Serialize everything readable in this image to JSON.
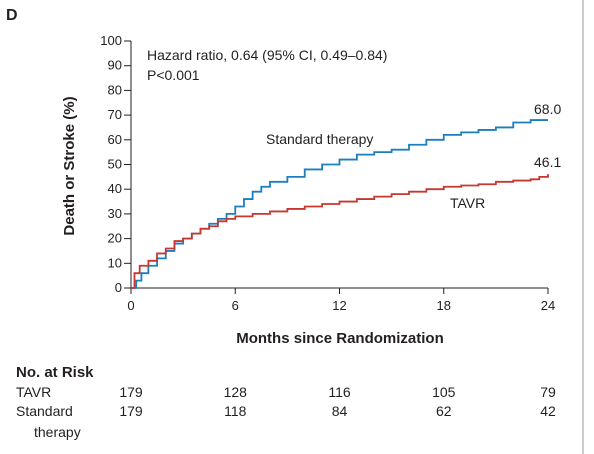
{
  "panel_letter": "D",
  "chart_data": {
    "type": "line",
    "xlabel": "Months since Randomization",
    "ylabel": "Death or Stroke (%)",
    "xlim": [
      0,
      24
    ],
    "ylim": [
      0,
      100
    ],
    "x_ticks": [
      0,
      6,
      12,
      18,
      24
    ],
    "y_ticks": [
      0,
      10,
      20,
      30,
      40,
      50,
      60,
      70,
      80,
      90,
      100
    ],
    "grid": false,
    "annotations": {
      "hazard_line1": "Hazard ratio, 0.64 (95% CI, 0.49–0.84)",
      "hazard_line2": "P<0.001"
    },
    "series": [
      {
        "name": "Standard therapy",
        "color": "#1a7fc1",
        "end_label": "68.0",
        "x": [
          0,
          0.3,
          0.6,
          1.0,
          1.5,
          2.0,
          2.5,
          3.0,
          3.5,
          4.0,
          4.5,
          5.0,
          5.5,
          6.0,
          6.5,
          7.0,
          7.5,
          8.0,
          9.0,
          10.0,
          11.0,
          12.0,
          13.0,
          14.0,
          15.0,
          16.0,
          17.0,
          18.0,
          19.0,
          20.0,
          21.0,
          22.0,
          23.0,
          24.0
        ],
        "y": [
          0,
          3,
          6,
          9,
          12,
          15,
          18,
          20,
          22,
          24,
          26,
          28,
          30,
          33,
          36,
          39,
          41,
          43,
          45,
          48,
          50,
          52,
          54,
          55,
          56,
          58,
          60,
          62,
          63,
          64,
          65,
          67,
          68,
          68
        ]
      },
      {
        "name": "TAVR",
        "color": "#c8372d",
        "end_label": "46.1",
        "x": [
          0,
          0.2,
          0.5,
          1.0,
          1.5,
          2.0,
          2.5,
          3.0,
          3.5,
          4.0,
          4.5,
          5.0,
          5.5,
          6.0,
          7.0,
          8.0,
          9.0,
          10.0,
          11.0,
          12.0,
          13.0,
          14.0,
          15.0,
          16.0,
          17.0,
          18.0,
          19.0,
          20.0,
          21.0,
          22.0,
          23.0,
          23.5,
          24.0
        ],
        "y": [
          0,
          6,
          9,
          11,
          14,
          16,
          19,
          20,
          22,
          24,
          25,
          27,
          28,
          29,
          30,
          31,
          32,
          33,
          34,
          35,
          36,
          37,
          38,
          39,
          40,
          41,
          41.5,
          42,
          43,
          43.5,
          44,
          45,
          46.1
        ]
      }
    ]
  },
  "risk_table": {
    "title": "No. at Risk",
    "rows": [
      {
        "label": [
          "TAVR"
        ],
        "values": [
          179,
          128,
          116,
          105,
          79
        ]
      },
      {
        "label": [
          "Standard",
          "therapy"
        ],
        "values": [
          179,
          118,
          84,
          62,
          42
        ]
      }
    ]
  }
}
